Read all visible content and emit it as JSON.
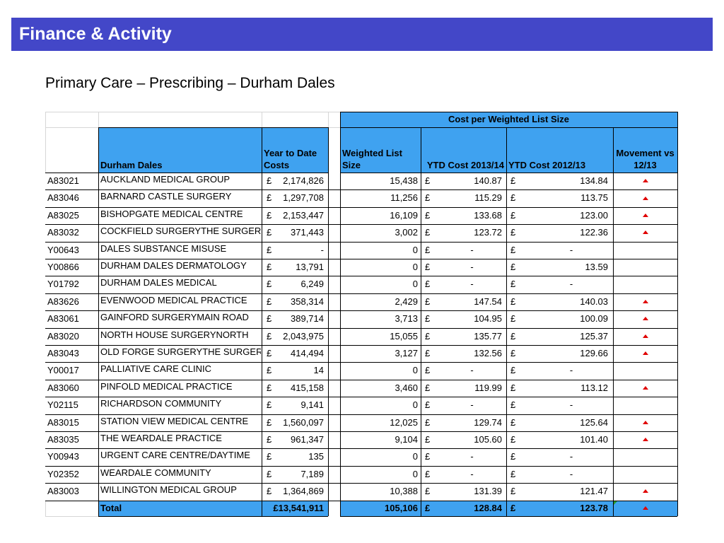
{
  "slide": {
    "title": "Finance & Activity",
    "subtitle": "Primary Care – Prescribing – Durham Dales"
  },
  "table": {
    "group_header": "Cost per Weighted List Size",
    "headers": {
      "practice": "Durham Dales",
      "ytd_costs": "Year to Date Costs",
      "weighted_list": "Weighted List Size",
      "ytd_1314": "YTD Cost 2013/14",
      "ytd_1213": "YTD Cost 2012/13",
      "movement": "Movement vs 12/13"
    },
    "currency_symbol": "£",
    "movement_icon": "red-up-triangle",
    "rows": [
      {
        "code": "A83021",
        "name": "AUCKLAND MEDICAL GROUP",
        "ytd_costs": "2,174,826",
        "weighted_list": "15,438",
        "ytd_1314": "140.87",
        "ytd_1213": "134.84",
        "movement_up": true
      },
      {
        "code": "A83046",
        "name": "BARNARD CASTLE SURGERY",
        "ytd_costs": "1,297,708",
        "weighted_list": "11,256",
        "ytd_1314": "115.29",
        "ytd_1213": "113.75",
        "movement_up": true
      },
      {
        "code": "A83025",
        "name": "BISHOPGATE MEDICAL CENTRE",
        "ytd_costs": "2,153,447",
        "weighted_list": "16,109",
        "ytd_1314": "133.68",
        "ytd_1213": "123.00",
        "movement_up": true
      },
      {
        "code": "A83032",
        "name": "COCKFIELD SURGERYTHE SURGERY",
        "ytd_costs": "371,443",
        "weighted_list": "3,002",
        "ytd_1314": "123.72",
        "ytd_1213": "122.36",
        "movement_up": true
      },
      {
        "code": "Y00643",
        "name": "DALES SUBSTANCE MISUSE",
        "ytd_costs": "-",
        "weighted_list": "0",
        "ytd_1314": "-",
        "ytd_1213": "-",
        "movement_up": false
      },
      {
        "code": "Y00866",
        "name": "DURHAM DALES DERMATOLOGY",
        "ytd_costs": "13,791",
        "weighted_list": "0",
        "ytd_1314": "-",
        "ytd_1213": "13.59",
        "movement_up": false
      },
      {
        "code": "Y01792",
        "name": "DURHAM DALES MEDICAL",
        "ytd_costs": "6,249",
        "weighted_list": "0",
        "ytd_1314": "-",
        "ytd_1213": "-",
        "movement_up": false
      },
      {
        "code": "A83626",
        "name": "EVENWOOD MEDICAL PRACTICE",
        "ytd_costs": "358,314",
        "weighted_list": "2,429",
        "ytd_1314": "147.54",
        "ytd_1213": "140.03",
        "movement_up": true
      },
      {
        "code": "A83061",
        "name": "GAINFORD SURGERYMAIN ROAD",
        "ytd_costs": "389,714",
        "weighted_list": "3,713",
        "ytd_1314": "104.95",
        "ytd_1213": "100.09",
        "movement_up": true
      },
      {
        "code": "A83020",
        "name": "NORTH HOUSE SURGERYNORTH",
        "ytd_costs": "2,043,975",
        "weighted_list": "15,055",
        "ytd_1314": "135.77",
        "ytd_1213": "125.37",
        "movement_up": true
      },
      {
        "code": "A83043",
        "name": "OLD FORGE SURGERYTHE SURGERY",
        "ytd_costs": "414,494",
        "weighted_list": "3,127",
        "ytd_1314": "132.56",
        "ytd_1213": "129.66",
        "movement_up": true
      },
      {
        "code": "Y00017",
        "name": "PALLIATIVE CARE CLINIC",
        "ytd_costs": "14",
        "weighted_list": "0",
        "ytd_1314": "-",
        "ytd_1213": "-",
        "movement_up": false
      },
      {
        "code": "A83060",
        "name": "PINFOLD MEDICAL PRACTICE",
        "ytd_costs": "415,158",
        "weighted_list": "3,460",
        "ytd_1314": "119.99",
        "ytd_1213": "113.12",
        "movement_up": true
      },
      {
        "code": "Y02115",
        "name": "RICHARDSON COMMUNITY",
        "ytd_costs": "9,141",
        "weighted_list": "0",
        "ytd_1314": "-",
        "ytd_1213": "-",
        "movement_up": false
      },
      {
        "code": "A83015",
        "name": "STATION VIEW MEDICAL CENTRE",
        "ytd_costs": "1,560,097",
        "weighted_list": "12,025",
        "ytd_1314": "129.74",
        "ytd_1213": "125.64",
        "movement_up": true
      },
      {
        "code": "A83035",
        "name": "THE WEARDALE PRACTICE",
        "ytd_costs": "961,347",
        "weighted_list": "9,104",
        "ytd_1314": "105.60",
        "ytd_1213": "101.40",
        "movement_up": true
      },
      {
        "code": "Y00943",
        "name": "URGENT CARE CENTRE/DAYTIME",
        "ytd_costs": "135",
        "weighted_list": "0",
        "ytd_1314": "-",
        "ytd_1213": "-",
        "movement_up": false
      },
      {
        "code": "Y02352",
        "name": "WEARDALE COMMUNITY",
        "ytd_costs": "7,189",
        "weighted_list": "0",
        "ytd_1314": "-",
        "ytd_1213": "-",
        "movement_up": false
      },
      {
        "code": "A83003",
        "name": "WILLINGTON MEDICAL GROUP",
        "ytd_costs": "1,364,869",
        "weighted_list": "10,388",
        "ytd_1314": "131.39",
        "ytd_1213": "121.47",
        "movement_up": true
      }
    ],
    "total": {
      "label": "Total",
      "ytd_costs": "£13,541,911",
      "weighted_list": "105,106",
      "ytd_1314": "128.84",
      "ytd_1213": "123.78",
      "movement_up": true
    }
  }
}
